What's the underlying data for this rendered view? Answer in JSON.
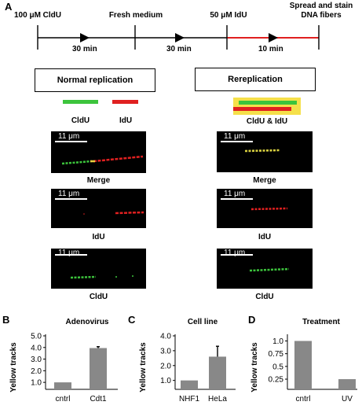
{
  "panels": {
    "a": "A",
    "b": "B",
    "c": "C",
    "d": "D"
  },
  "timeline": {
    "steps": [
      "100 μM CldU",
      "Fresh medium",
      "50 μM IdU",
      "Spread and stain DNA fibers"
    ],
    "durations": [
      "30 min",
      "30 min",
      "10 min"
    ]
  },
  "normal": {
    "title": "Normal replication",
    "legend_green": "CldU",
    "legend_red": "IdU",
    "images": [
      {
        "scale": "11 μm",
        "caption": "Merge"
      },
      {
        "scale": "11 μm",
        "caption": "IdU"
      },
      {
        "scale": "11 μm",
        "caption": "CldU"
      }
    ]
  },
  "rereplication": {
    "title": "Rereplication",
    "legend": "CldU & IdU",
    "images": [
      {
        "scale": "11 μm",
        "caption": "Merge"
      },
      {
        "scale": "11 μm",
        "caption": "IdU"
      },
      {
        "scale": "11 μm",
        "caption": "CldU"
      }
    ]
  },
  "colors": {
    "green": "#3cc43c",
    "red": "#e02020",
    "yellow": "#f5e04a",
    "bar": "#888888"
  },
  "chart_data": [
    {
      "type": "bar",
      "title": "Adenovirus",
      "ylabel": "Yellow tracks",
      "categories": [
        "cntrl",
        "Cdt1"
      ],
      "values": [
        1.0,
        3.95
      ],
      "errors": [
        0,
        0.12
      ],
      "ylim": [
        0.4,
        5.0
      ],
      "yticks": [
        "1.0",
        "2.0",
        "3.0",
        "4.0",
        "5.0"
      ]
    },
    {
      "type": "bar",
      "title": "Cell line",
      "ylabel": "Yellow tracks",
      "categories": [
        "NHF1",
        "HeLa"
      ],
      "values": [
        1.0,
        2.6
      ],
      "errors": [
        0,
        0.7
      ],
      "ylim": [
        0.4,
        4.0
      ],
      "yticks": [
        "1.0",
        "2.0",
        "3.0",
        "4.0"
      ]
    },
    {
      "type": "bar",
      "title": "Treatment",
      "ylabel": "Yellow tracks",
      "categories": [
        "cntrl",
        "UV"
      ],
      "values": [
        1.0,
        0.25
      ],
      "errors": [
        0,
        0
      ],
      "ylim": [
        0.05,
        1.1
      ],
      "yticks": [
        "0.25",
        "0.5",
        "0.75",
        "1.0"
      ]
    }
  ]
}
